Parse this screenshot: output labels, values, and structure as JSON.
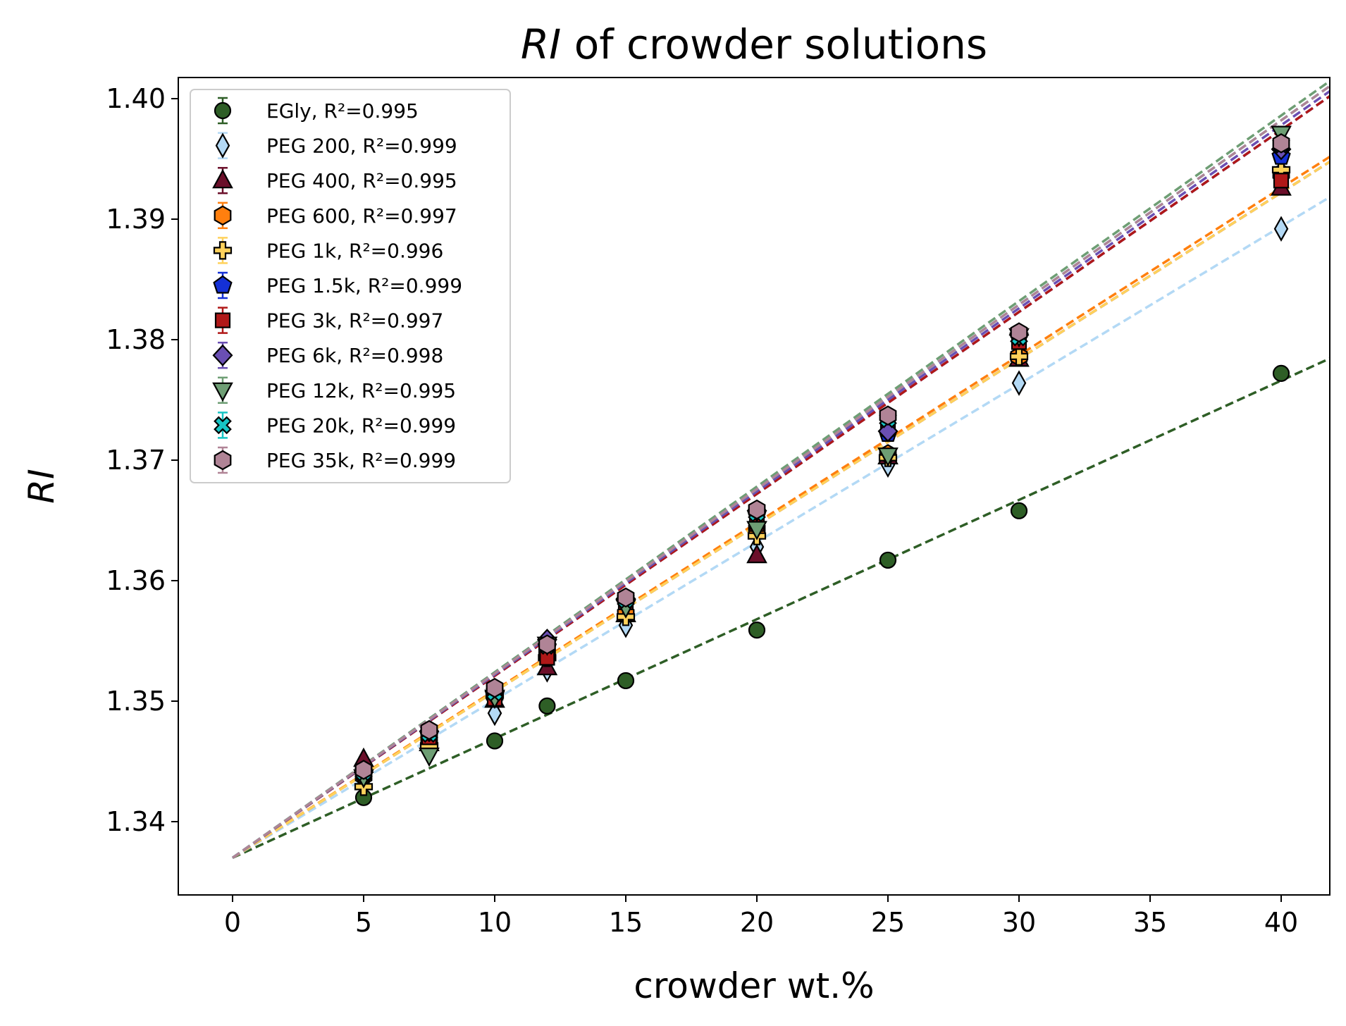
{
  "chart_data": {
    "type": "scatter",
    "title": "RI of crowder solutions",
    "title_italic_part": "RI",
    "title_rest": " of crowder solutions",
    "xlabel": "crowder wt.%",
    "ylabel": "RI",
    "xlim": [
      -2,
      42
    ],
    "ylim": [
      1.334,
      1.4016
    ],
    "x_ticks": [
      0,
      5,
      10,
      15,
      20,
      25,
      30,
      35,
      40
    ],
    "y_ticks": [
      1.34,
      1.35,
      1.36,
      1.37,
      1.38,
      1.39,
      1.4
    ],
    "y_tick_labels": [
      "1.34",
      "1.35",
      "1.36",
      "1.37",
      "1.38",
      "1.39",
      "1.40"
    ],
    "legend_position": "upper-left",
    "fit_lines": "dashed linear fits, intercept 1.337 at 0 wt.%",
    "series": [
      {
        "name": "EGly, R²=0.995",
        "color": "#2e5e26",
        "marker": "circle",
        "intercept": 1.337,
        "slope": 0.00099,
        "x": [
          5,
          10,
          12,
          15,
          20,
          25,
          30,
          40
        ],
        "y": [
          1.342,
          1.3467,
          1.3496,
          1.3517,
          1.3559,
          1.3617,
          1.3658,
          1.3772
        ]
      },
      {
        "name": "PEG 200, R²=0.999",
        "color": "#b3d9f5",
        "marker": "thin_diamond",
        "intercept": 1.337,
        "slope": 0.00131,
        "x": [
          5,
          7.5,
          10,
          12,
          15,
          20,
          25,
          30,
          40
        ],
        "y": [
          1.3434,
          1.3463,
          1.349,
          1.3526,
          1.3563,
          1.3628,
          1.3696,
          1.3764,
          1.3892
        ]
      },
      {
        "name": "PEG 400, R²=0.995",
        "color": "#6b0f2a",
        "marker": "triangle_up",
        "intercept": 1.337,
        "slope": 0.00138,
        "x": [
          5,
          7.5,
          10,
          12,
          15,
          20,
          25,
          30,
          40
        ],
        "y": [
          1.3452,
          1.3465,
          1.3501,
          1.3528,
          1.3572,
          1.3621,
          1.3703,
          1.3784,
          1.3926
        ]
      },
      {
        "name": "PEG 600, R²=0.997",
        "color": "#ff7f0e",
        "marker": "hexagon",
        "intercept": 1.337,
        "slope": 0.00139,
        "x": [
          5,
          7.5,
          10,
          12,
          15,
          20,
          25,
          30,
          40
        ],
        "y": [
          1.3438,
          1.3468,
          1.3505,
          1.3538,
          1.3572,
          1.3642,
          1.3705,
          1.3786,
          1.3938
        ]
      },
      {
        "name": "PEG 1k, R²=0.996",
        "color": "#ffd25c",
        "marker": "plus",
        "intercept": 1.337,
        "slope": 0.00138,
        "x": [
          5,
          7.5,
          10,
          12,
          15,
          20,
          25,
          30,
          40
        ],
        "y": [
          1.3429,
          1.3463,
          1.3505,
          1.3536,
          1.357,
          1.3637,
          1.3702,
          1.3786,
          1.3941
        ]
      },
      {
        "name": "PEG 1.5k, R²=0.999",
        "color": "#1430d6",
        "marker": "pentagon",
        "intercept": 1.337,
        "slope": 0.00151,
        "x": [
          5,
          7.5,
          10,
          12,
          15,
          20,
          25,
          30,
          40
        ],
        "y": [
          1.344,
          1.3472,
          1.3505,
          1.3545,
          1.3583,
          1.3655,
          1.3722,
          1.3803,
          1.3952
        ]
      },
      {
        "name": "PEG 3k, R²=0.997",
        "color": "#b01818",
        "marker": "square",
        "intercept": 1.337,
        "slope": 0.00151,
        "x": [
          5,
          7.5,
          10,
          12,
          15,
          20,
          25,
          30,
          40
        ],
        "y": [
          1.3441,
          1.347,
          1.3502,
          1.3536,
          1.3582,
          1.3647,
          1.3726,
          1.3798,
          1.3932
        ]
      },
      {
        "name": "PEG 6k, R²=0.998",
        "color": "#6a4fb3",
        "marker": "diamond",
        "intercept": 1.337,
        "slope": 0.00152,
        "x": [
          5,
          7.5,
          10,
          12,
          15,
          20,
          25,
          30,
          40
        ],
        "y": [
          1.3441,
          1.3475,
          1.3508,
          1.3551,
          1.3585,
          1.3658,
          1.3724,
          1.3804,
          1.3958
        ]
      },
      {
        "name": "PEG 12k, R²=0.995",
        "color": "#6e9e74",
        "marker": "triangle_down",
        "intercept": 1.337,
        "slope": 0.00154,
        "x": [
          5,
          7.5,
          10,
          12,
          15,
          20,
          25,
          30,
          40
        ],
        "y": [
          1.3437,
          1.3455,
          1.3503,
          1.3547,
          1.3578,
          1.3643,
          1.3704,
          1.3803,
          1.3971
        ]
      },
      {
        "name": "PEG 20k, R²=0.999",
        "color": "#17c4c4",
        "marker": "x_filled",
        "intercept": 1.337,
        "slope": 0.00153,
        "x": [
          5,
          7.5,
          10,
          12,
          15,
          20,
          25,
          30,
          40
        ],
        "y": [
          1.3441,
          1.3473,
          1.3507,
          1.3546,
          1.3584,
          1.3656,
          1.3734,
          1.3802,
          1.3962
        ]
      },
      {
        "name": "PEG 35k, R²=0.999",
        "color": "#b08496",
        "marker": "hexagon",
        "intercept": 1.337,
        "slope": 0.00153,
        "x": [
          5,
          7.5,
          10,
          12,
          15,
          20,
          25,
          30,
          40
        ],
        "y": [
          1.3443,
          1.3476,
          1.3511,
          1.3547,
          1.3586,
          1.3659,
          1.3737,
          1.3806,
          1.3963
        ]
      }
    ]
  }
}
